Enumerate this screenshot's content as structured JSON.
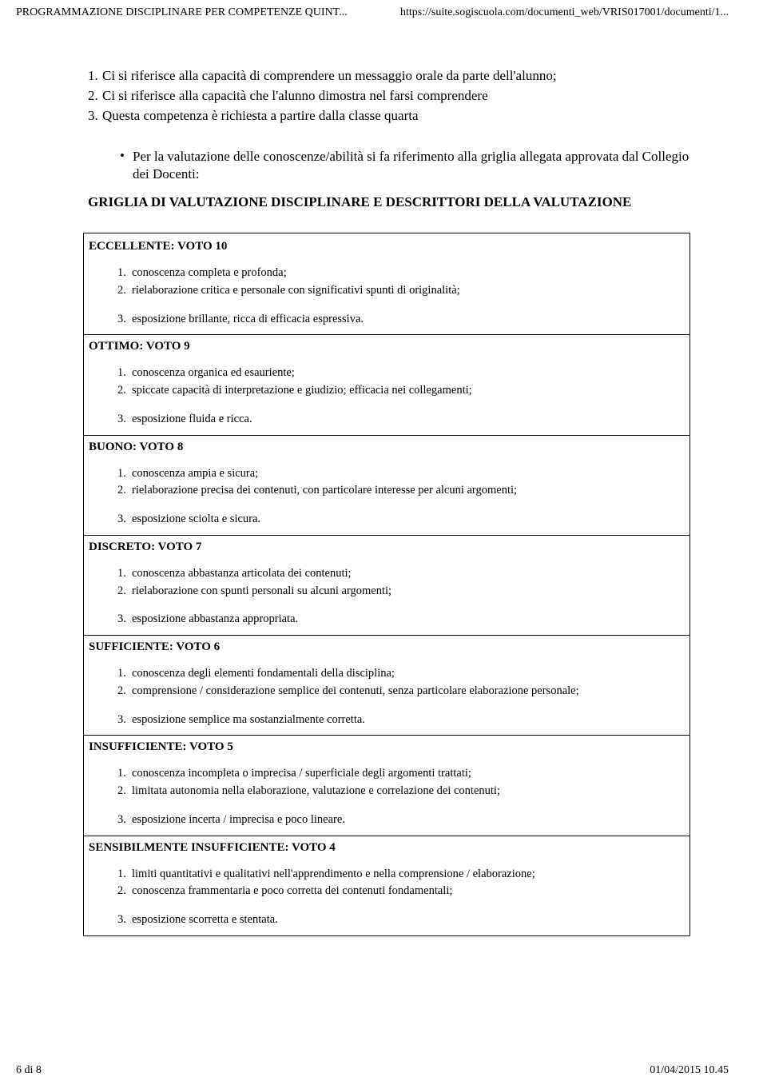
{
  "header": {
    "left": "PROGRAMMAZIONE DISCIPLINARE PER COMPETENZE QUINT...",
    "right": "https://suite.sogiscuola.com/documenti_web/VRIS017001/documenti/1..."
  },
  "intro": [
    {
      "n": "1.",
      "t": "Ci si riferisce alla capacità di comprendere un messaggio orale da parte dell'alunno;"
    },
    {
      "n": "2.",
      "t": "Ci si riferisce alla capacità che l'alunno dimostra nel farsi comprendere"
    },
    {
      "n": "3.",
      "t": "Questa competenza è richiesta a partire dalla classe quarta"
    }
  ],
  "bullet": "Per la valutazione delle conoscenze/abilità si fa riferimento alla griglia allegata approvata dal Collegio dei Docenti:",
  "section_title": "GRIGLIA DI VALUTAZIONE DISCIPLINARE E DESCRITTORI DELLA VALUTAZIONE",
  "grades": [
    {
      "head": "ECCELLENTE: VOTO 10",
      "items12": [
        {
          "n": "1.",
          "t": "conoscenza completa e profonda;"
        },
        {
          "n": "2.",
          "t": "rielaborazione critica e personale con significativi spunti di originalità;"
        }
      ],
      "item3": {
        "n": "3.",
        "t": "esposizione brillante, ricca di efficacia espressiva."
      }
    },
    {
      "head": "OTTIMO: VOTO 9",
      "items12": [
        {
          "n": "1.",
          "t": "conoscenza organica ed esauriente;"
        },
        {
          "n": "2.",
          "t": "spiccate capacità di interpretazione e giudizio; efficacia nei collegamenti;"
        }
      ],
      "item3": {
        "n": "3.",
        "t": "esposizione fluida e ricca."
      }
    },
    {
      "head": "BUONO: VOTO 8",
      "items12": [
        {
          "n": "1.",
          "t": "conoscenza ampia e sicura;"
        },
        {
          "n": "2.",
          "t": "rielaborazione precisa dei contenuti, con particolare interesse per alcuni argomenti;"
        }
      ],
      "item3": {
        "n": "3.",
        "t": "esposizione sciolta e sicura."
      }
    },
    {
      "head": "DISCRETO: VOTO 7",
      "items12": [
        {
          "n": "1.",
          "t": "conoscenza abbastanza articolata dei contenuti;"
        },
        {
          "n": "2.",
          "t": "rielaborazione con spunti personali su alcuni argomenti;"
        }
      ],
      "item3": {
        "n": "3.",
        "t": "esposizione abbastanza appropriata."
      }
    },
    {
      "head": "SUFFICIENTE: VOTO 6",
      "items12": [
        {
          "n": "1.",
          "t": "conoscenza degli elementi fondamentali della disciplina;"
        },
        {
          "n": "2.",
          "t": "comprensione / considerazione semplice dei contenuti, senza particolare elaborazione personale;"
        }
      ],
      "item3": {
        "n": "3.",
        "t": "esposizione semplice ma sostanzialmente corretta."
      }
    },
    {
      "head": "INSUFFICIENTE: VOTO 5",
      "items12": [
        {
          "n": "1.",
          "t": "conoscenza incompleta o imprecisa / superficiale degli argomenti trattati;"
        },
        {
          "n": "2.",
          "t": "limitata autonomia nella elaborazione, valutazione e correlazione dei contenuti;"
        }
      ],
      "item3": {
        "n": "3.",
        "t": "esposizione incerta / imprecisa e poco lineare."
      }
    },
    {
      "head": "SENSIBILMENTE INSUFFICIENTE: VOTO 4",
      "items12": [
        {
          "n": "1.",
          "t": "limiti quantitativi e qualitativi nell'apprendimento e nella comprensione / elaborazione;"
        },
        {
          "n": "2.",
          "t": "conoscenza frammentaria e poco corretta dei contenuti fondamentali;"
        }
      ],
      "item3": {
        "n": "3.",
        "t": "esposizione scorretta e stentata."
      }
    }
  ],
  "footer": {
    "left": "6 di 8",
    "right": "01/04/2015 10.45"
  }
}
